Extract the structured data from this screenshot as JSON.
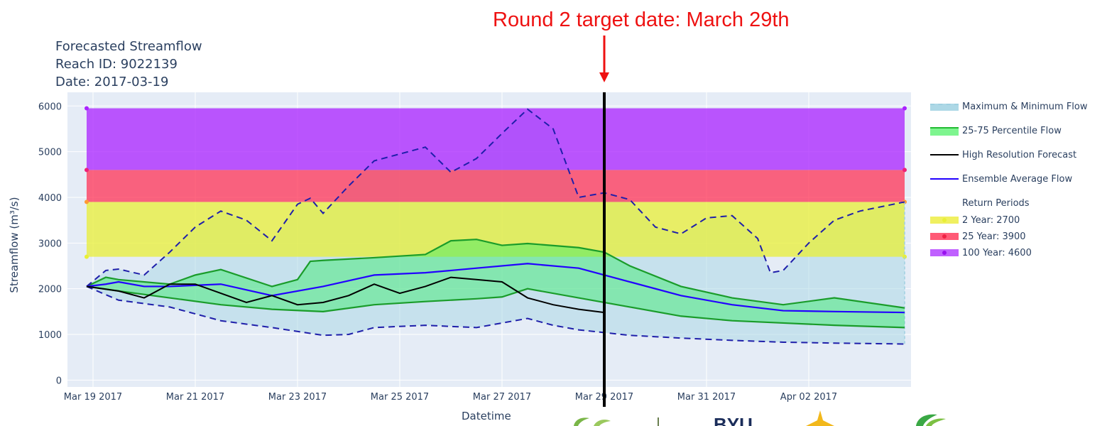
{
  "annotation": "Round 2 target date: March 29th",
  "title_lines": [
    "Forecasted Streamflow",
    "Reach ID: 9022139",
    "Date: 2017-03-19"
  ],
  "logos": {
    "byu_text": "BYU"
  },
  "chart_data": {
    "type": "line",
    "xlabel": "Datetime",
    "ylabel": "Streamflow (m³/s)",
    "xlim": [
      "2017-03-18 12:00",
      "2017-04-04 00:00"
    ],
    "ylim": [
      -150,
      6300
    ],
    "yticks": [
      0,
      1000,
      2000,
      3000,
      4000,
      5000,
      6000
    ],
    "xticks": [
      {
        "date": "2017-03-19",
        "label": "Mar 19 2017"
      },
      {
        "date": "2017-03-21",
        "label": "Mar 21 2017"
      },
      {
        "date": "2017-03-23",
        "label": "Mar 23 2017"
      },
      {
        "date": "2017-03-25",
        "label": "Mar 25 2017"
      },
      {
        "date": "2017-03-27",
        "label": "Mar 27 2017"
      },
      {
        "date": "2017-03-29",
        "label": "Mar 29 2017"
      },
      {
        "date": "2017-03-31",
        "label": "Mar 31 2017"
      },
      {
        "date": "2017-04-02",
        "label": "Apr 02 2017"
      }
    ],
    "grid": true,
    "legend_position": "right",
    "target_date": "2017-03-29",
    "band_start": "2017-03-18 21:00",
    "band_end": "2017-04-03 21:00",
    "return_periods_title": "Return Periods",
    "return_periods": [
      {
        "label": "2 Year: 2700",
        "from": 2700,
        "to": 3900,
        "color": "#e8ef36"
      },
      {
        "label": "25 Year: 3900",
        "from": 3900,
        "to": 4600,
        "color": "#ff3355"
      },
      {
        "label": "100 Year: 4600",
        "from": 4600,
        "to": 5950,
        "color": "#aa22ff"
      }
    ],
    "series": [
      {
        "name": "Maximum & Minimum Flow",
        "color": "#add8e6"
      },
      {
        "name": "25-75 Percentile Flow",
        "color": "#33ee66"
      },
      {
        "name": "High Resolution Forecast",
        "color": "#000000"
      },
      {
        "name": "Ensemble Average Flow",
        "color": "#2200ff"
      }
    ],
    "max_flow": [
      [
        "2017-03-18 21:00",
        2050
      ],
      [
        "2017-03-19 06:00",
        2400
      ],
      [
        "2017-03-19 12:00",
        2430
      ],
      [
        "2017-03-20 00:00",
        2300
      ],
      [
        "2017-03-20 12:00",
        2800
      ],
      [
        "2017-03-21 00:00",
        3350
      ],
      [
        "2017-03-21 12:00",
        3700
      ],
      [
        "2017-03-22 00:00",
        3500
      ],
      [
        "2017-03-22 12:00",
        3050
      ],
      [
        "2017-03-23 00:00",
        3850
      ],
      [
        "2017-03-23 06:00",
        3980
      ],
      [
        "2017-03-23 12:00",
        3650
      ],
      [
        "2017-03-24 00:00",
        4250
      ],
      [
        "2017-03-24 12:00",
        4800
      ],
      [
        "2017-03-25 00:00",
        4950
      ],
      [
        "2017-03-25 12:00",
        5100
      ],
      [
        "2017-03-26 00:00",
        4550
      ],
      [
        "2017-03-26 12:00",
        4850
      ],
      [
        "2017-03-27 00:00",
        5400
      ],
      [
        "2017-03-27 12:00",
        5930
      ],
      [
        "2017-03-28 00:00",
        5500
      ],
      [
        "2017-03-28 12:00",
        4000
      ],
      [
        "2017-03-29 00:00",
        4100
      ],
      [
        "2017-03-29 12:00",
        3950
      ],
      [
        "2017-03-30 00:00",
        3350
      ],
      [
        "2017-03-30 12:00",
        3200
      ],
      [
        "2017-03-31 00:00",
        3550
      ],
      [
        "2017-03-31 12:00",
        3600
      ],
      [
        "2017-04-01 00:00",
        3100
      ],
      [
        "2017-04-01 06:00",
        2350
      ],
      [
        "2017-04-01 12:00",
        2400
      ],
      [
        "2017-04-02 00:00",
        3000
      ],
      [
        "2017-04-02 12:00",
        3500
      ],
      [
        "2017-04-03 00:00",
        3700
      ],
      [
        "2017-04-03 21:00",
        3900
      ]
    ],
    "min_flow": [
      [
        "2017-03-18 21:00",
        2050
      ],
      [
        "2017-03-19 12:00",
        1750
      ],
      [
        "2017-03-20 12:00",
        1600
      ],
      [
        "2017-03-21 12:00",
        1300
      ],
      [
        "2017-03-22 12:00",
        1150
      ],
      [
        "2017-03-23 12:00",
        980
      ],
      [
        "2017-03-24 00:00",
        1000
      ],
      [
        "2017-03-24 12:00",
        1150
      ],
      [
        "2017-03-25 12:00",
        1200
      ],
      [
        "2017-03-26 12:00",
        1150
      ],
      [
        "2017-03-27 00:00",
        1250
      ],
      [
        "2017-03-27 12:00",
        1350
      ],
      [
        "2017-03-28 00:00",
        1200
      ],
      [
        "2017-03-28 12:00",
        1100
      ],
      [
        "2017-03-29 12:00",
        980
      ],
      [
        "2017-03-30 12:00",
        920
      ],
      [
        "2017-03-31 12:00",
        870
      ],
      [
        "2017-04-01 12:00",
        830
      ],
      [
        "2017-04-02 12:00",
        810
      ],
      [
        "2017-04-03 21:00",
        790
      ]
    ],
    "p75_flow": [
      [
        "2017-03-18 21:00",
        2050
      ],
      [
        "2017-03-19 06:00",
        2250
      ],
      [
        "2017-03-19 12:00",
        2200
      ],
      [
        "2017-03-20 12:00",
        2100
      ],
      [
        "2017-03-21 00:00",
        2300
      ],
      [
        "2017-03-21 12:00",
        2420
      ],
      [
        "2017-03-22 12:00",
        2050
      ],
      [
        "2017-03-23 00:00",
        2200
      ],
      [
        "2017-03-23 06:00",
        2600
      ],
      [
        "2017-03-23 12:00",
        2620
      ],
      [
        "2017-03-24 12:00",
        2680
      ],
      [
        "2017-03-25 12:00",
        2750
      ],
      [
        "2017-03-26 00:00",
        3050
      ],
      [
        "2017-03-26 12:00",
        3080
      ],
      [
        "2017-03-27 00:00",
        2950
      ],
      [
        "2017-03-27 12:00",
        2990
      ],
      [
        "2017-03-28 12:00",
        2900
      ],
      [
        "2017-03-29 00:00",
        2800
      ],
      [
        "2017-03-29 12:00",
        2500
      ],
      [
        "2017-03-30 12:00",
        2050
      ],
      [
        "2017-03-31 12:00",
        1800
      ],
      [
        "2017-04-01 12:00",
        1650
      ],
      [
        "2017-04-02 12:00",
        1800
      ],
      [
        "2017-04-03 21:00",
        1580
      ]
    ],
    "p25_flow": [
      [
        "2017-03-18 21:00",
        2050
      ],
      [
        "2017-03-19 12:00",
        1950
      ],
      [
        "2017-03-20 12:00",
        1800
      ],
      [
        "2017-03-21 12:00",
        1650
      ],
      [
        "2017-03-22 12:00",
        1550
      ],
      [
        "2017-03-23 12:00",
        1500
      ],
      [
        "2017-03-24 12:00",
        1650
      ],
      [
        "2017-03-25 12:00",
        1720
      ],
      [
        "2017-03-26 12:00",
        1780
      ],
      [
        "2017-03-27 00:00",
        1820
      ],
      [
        "2017-03-27 12:00",
        2000
      ],
      [
        "2017-03-28 12:00",
        1800
      ],
      [
        "2017-03-29 12:00",
        1600
      ],
      [
        "2017-03-30 12:00",
        1400
      ],
      [
        "2017-03-31 12:00",
        1300
      ],
      [
        "2017-04-01 12:00",
        1250
      ],
      [
        "2017-04-02 12:00",
        1200
      ],
      [
        "2017-04-03 21:00",
        1150
      ]
    ],
    "ensemble_avg": [
      [
        "2017-03-18 21:00",
        2050
      ],
      [
        "2017-03-19 06:00",
        2100
      ],
      [
        "2017-03-19 12:00",
        2150
      ],
      [
        "2017-03-20 00:00",
        2050
      ],
      [
        "2017-03-20 12:00",
        2050
      ],
      [
        "2017-03-21 12:00",
        2100
      ],
      [
        "2017-03-22 12:00",
        1850
      ],
      [
        "2017-03-23 12:00",
        2050
      ],
      [
        "2017-03-24 12:00",
        2300
      ],
      [
        "2017-03-25 12:00",
        2350
      ],
      [
        "2017-03-26 12:00",
        2450
      ],
      [
        "2017-03-27 12:00",
        2550
      ],
      [
        "2017-03-28 12:00",
        2450
      ],
      [
        "2017-03-29 12:00",
        2150
      ],
      [
        "2017-03-30 12:00",
        1850
      ],
      [
        "2017-03-31 12:00",
        1650
      ],
      [
        "2017-04-01 12:00",
        1520
      ],
      [
        "2017-04-02 12:00",
        1500
      ],
      [
        "2017-04-03 21:00",
        1480
      ]
    ],
    "high_res": [
      [
        "2017-03-18 21:00",
        2050
      ],
      [
        "2017-03-19 12:00",
        1950
      ],
      [
        "2017-03-20 00:00",
        1800
      ],
      [
        "2017-03-20 12:00",
        2100
      ],
      [
        "2017-03-21 00:00",
        2100
      ],
      [
        "2017-03-21 12:00",
        1900
      ],
      [
        "2017-03-22 00:00",
        1700
      ],
      [
        "2017-03-22 12:00",
        1850
      ],
      [
        "2017-03-23 00:00",
        1650
      ],
      [
        "2017-03-23 12:00",
        1700
      ],
      [
        "2017-03-24 00:00",
        1850
      ],
      [
        "2017-03-24 12:00",
        2100
      ],
      [
        "2017-03-25 00:00",
        1900
      ],
      [
        "2017-03-25 12:00",
        2050
      ],
      [
        "2017-03-26 00:00",
        2250
      ],
      [
        "2017-03-26 12:00",
        2200
      ],
      [
        "2017-03-27 00:00",
        2150
      ],
      [
        "2017-03-27 12:00",
        1800
      ],
      [
        "2017-03-28 00:00",
        1650
      ],
      [
        "2017-03-28 12:00",
        1550
      ],
      [
        "2017-03-29 00:00",
        1480
      ]
    ]
  }
}
